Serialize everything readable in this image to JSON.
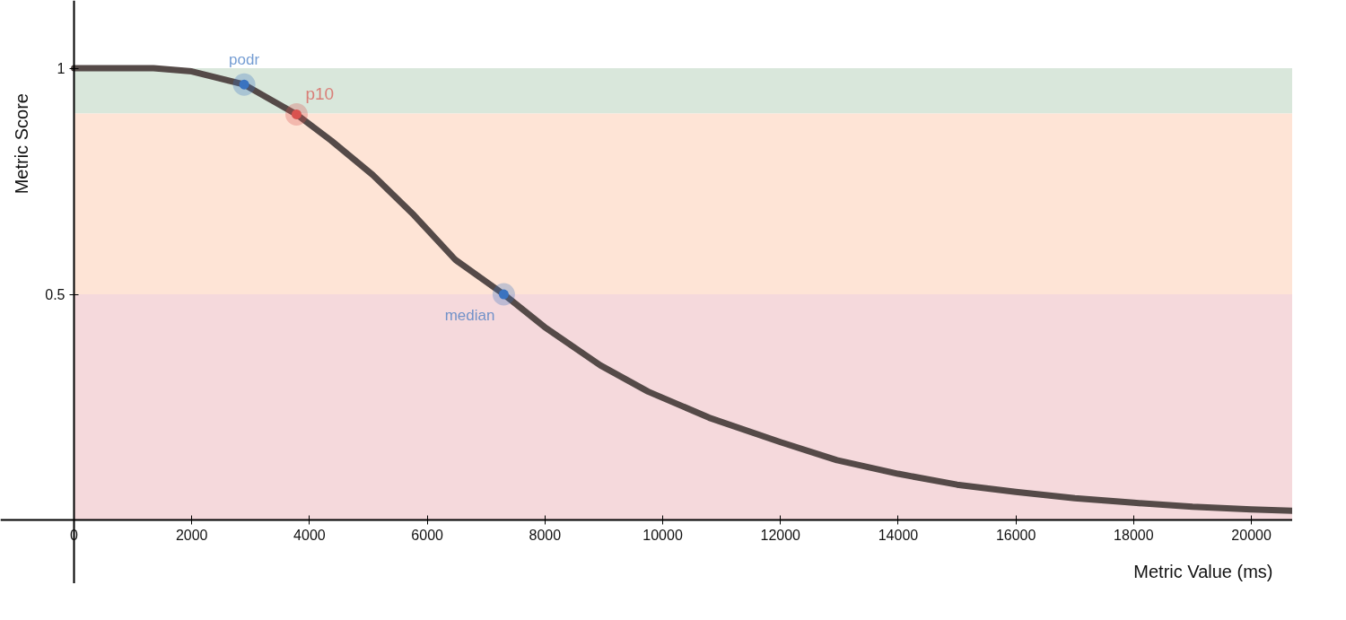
{
  "chart_data": {
    "type": "line",
    "xlabel": "Metric Value (ms)",
    "ylabel": "Metric Score",
    "xlim": [
      -1250,
      20700
    ],
    "ylim": [
      -0.14,
      1.15
    ],
    "xticks": [
      0,
      2000,
      4000,
      6000,
      8000,
      10000,
      12000,
      14000,
      16000,
      18000,
      20000
    ],
    "yticks": [
      0.5,
      1
    ],
    "grid": false,
    "line_style": "solid",
    "series": [
      {
        "color": "#554a48",
        "x": [
          0,
          1350,
          2000,
          2890,
          3780,
          4370,
          5075,
          5775,
          6480,
          7300,
          7990,
          8940,
          9750,
          10790,
          12000,
          12960,
          14000,
          15000,
          16000,
          17000,
          18000,
          19000,
          20000,
          20700
        ],
        "values": [
          1,
          1,
          0.993,
          0.964,
          0.898,
          0.84,
          0.764,
          0.675,
          0.576,
          0.5,
          0.428,
          0.343,
          0.285,
          0.227,
          0.173,
          0.133,
          0.103,
          0.079,
          0.063,
          0.049,
          0.039,
          0.03,
          0.024,
          0.021
        ]
      },
      {
        "type": "scatter",
        "name": "podr",
        "color": "#3a73c0",
        "x": [
          2890
        ],
        "values": [
          0.964
        ]
      },
      {
        "type": "scatter",
        "name": "p10",
        "color": "#d9534f",
        "x": [
          3780
        ],
        "values": [
          0.898
        ]
      },
      {
        "type": "scatter",
        "name": "median",
        "color": "#3a73c0",
        "x": [
          7300
        ],
        "values": [
          0.5
        ]
      }
    ],
    "bands": [
      {
        "axis": "y",
        "from": 0.9,
        "to": 1,
        "color": "#d9e7db"
      },
      {
        "axis": "y",
        "from": 0.5,
        "to": 0.9,
        "color": "#fee4d6"
      },
      {
        "axis": "y",
        "from": 0,
        "to": 0.5,
        "color": "#f5d9dc"
      }
    ]
  }
}
